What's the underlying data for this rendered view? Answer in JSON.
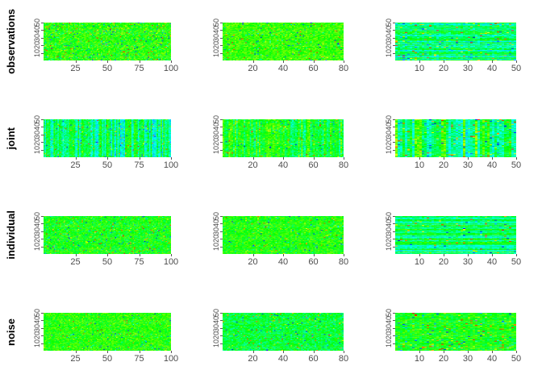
{
  "chart_data": {
    "type": "heatmap",
    "title": "",
    "description": "4x3 grid of random-matrix heatmaps (JIVE-style decomposition): each row is a data component, each column a dataset block; rainbow color scale dominated by green/cyan with scattered blue/yellow/red cells",
    "rows": [
      {
        "label": "observations"
      },
      {
        "label": "joint"
      },
      {
        "label": "individual"
      },
      {
        "label": "noise"
      }
    ],
    "columns": [
      {
        "n": 100,
        "x_ticks": [
          25,
          50,
          75,
          100
        ]
      },
      {
        "n": 80,
        "x_ticks": [
          20,
          40,
          60,
          80
        ]
      },
      {
        "n": 50,
        "x_ticks": [
          10,
          20,
          30,
          40,
          50
        ]
      }
    ],
    "y_ticks": [
      10,
      20,
      30,
      40,
      50
    ],
    "n_rows": 50,
    "palette": {
      "type": "rainbow",
      "stops": [
        "#0000ff",
        "#00ffff",
        "#00ff00",
        "#ffff00",
        "#ff0000"
      ]
    },
    "grid": "off",
    "legend": "none",
    "panels": [
      {
        "row": 0,
        "col": 0,
        "pattern": "speckle",
        "mean": 0.53,
        "noise": 0.11,
        "stripe": 0.0,
        "outlier": 0.1,
        "seed": 101
      },
      {
        "row": 0,
        "col": 1,
        "pattern": "speckle",
        "mean": 0.55,
        "noise": 0.09,
        "stripe": 0.0,
        "outlier": 0.07,
        "seed": 102
      },
      {
        "row": 0,
        "col": 2,
        "pattern": "hstripe",
        "mean": 0.38,
        "noise": 0.1,
        "stripe": 0.13,
        "outlier": 0.08,
        "seed": 103
      },
      {
        "row": 1,
        "col": 0,
        "pattern": "vstripe",
        "mean": 0.38,
        "noise": 0.1,
        "stripe": 0.15,
        "outlier": 0.05,
        "seed": 104
      },
      {
        "row": 1,
        "col": 1,
        "pattern": "vstripe",
        "mean": 0.47,
        "noise": 0.1,
        "stripe": 0.12,
        "outlier": 0.05,
        "seed": 105
      },
      {
        "row": 1,
        "col": 2,
        "pattern": "vstripe",
        "mean": 0.44,
        "noise": 0.1,
        "stripe": 0.17,
        "outlier": 0.07,
        "seed": 106
      },
      {
        "row": 2,
        "col": 0,
        "pattern": "speckle",
        "mean": 0.5,
        "noise": 0.11,
        "stripe": 0.0,
        "outlier": 0.08,
        "seed": 107
      },
      {
        "row": 2,
        "col": 1,
        "pattern": "speckle",
        "mean": 0.52,
        "noise": 0.1,
        "stripe": 0.0,
        "outlier": 0.06,
        "seed": 108
      },
      {
        "row": 2,
        "col": 2,
        "pattern": "hstripe",
        "mean": 0.4,
        "noise": 0.08,
        "stripe": 0.16,
        "outlier": 0.06,
        "seed": 109
      },
      {
        "row": 3,
        "col": 0,
        "pattern": "speckle",
        "mean": 0.53,
        "noise": 0.1,
        "stripe": 0.0,
        "outlier": 0.05,
        "seed": 110
      },
      {
        "row": 3,
        "col": 1,
        "pattern": "speckle",
        "mean": 0.45,
        "noise": 0.11,
        "stripe": 0.0,
        "outlier": 0.07,
        "seed": 111
      },
      {
        "row": 3,
        "col": 2,
        "pattern": "speckle",
        "mean": 0.5,
        "noise": 0.11,
        "stripe": 0.0,
        "outlier": 0.1,
        "seed": 112
      }
    ]
  }
}
